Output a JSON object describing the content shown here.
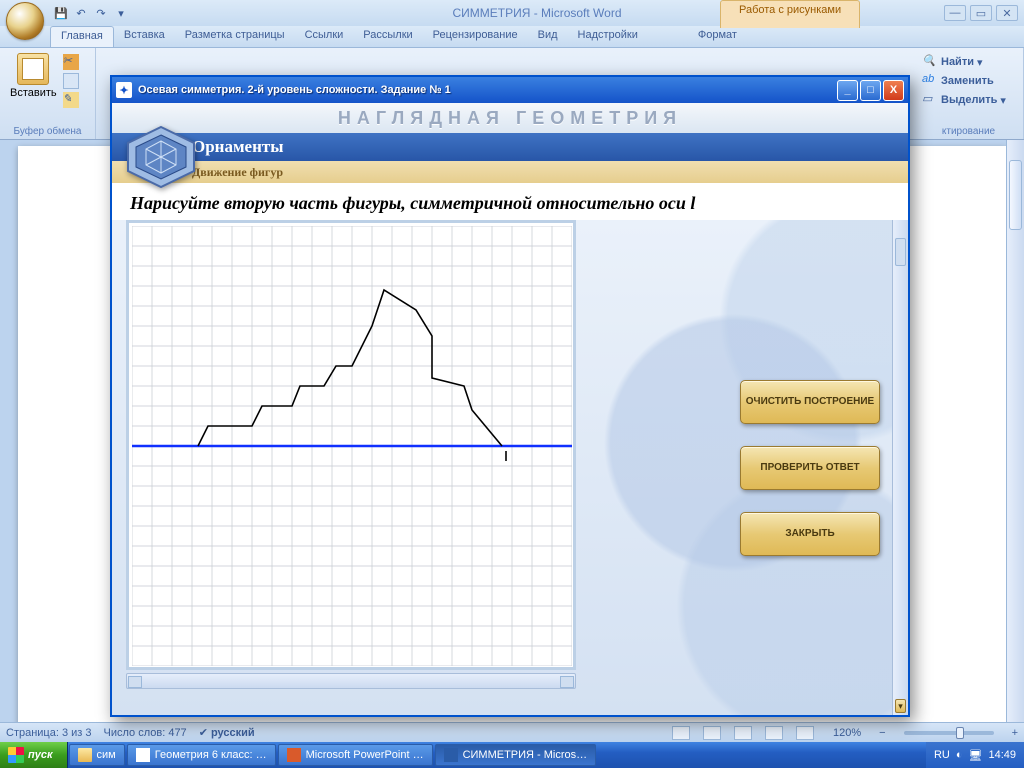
{
  "word": {
    "title": "СИММЕТРИЯ - Microsoft Word",
    "context_tab": "Работа с рисунками",
    "tabs": [
      "Главная",
      "Вставка",
      "Разметка страницы",
      "Ссылки",
      "Рассылки",
      "Рецензирование",
      "Вид",
      "Надстройки",
      "Формат"
    ],
    "active_tab_index": 0,
    "clipboard": {
      "paste": "Вставить",
      "group": "Буфер обмена"
    },
    "editing": {
      "find": "Найти",
      "replace": "Заменить",
      "select": "Выделить",
      "group": "ктирование"
    },
    "status": {
      "page": "Страница: 3 из 3",
      "words": "Число слов: 477",
      "lang": "русский",
      "zoom": "120%"
    }
  },
  "app": {
    "title": "Осевая симметрия. 2-й уровень сложности. Задание № 1",
    "brand": "НАГЛЯДНАЯ ГЕОМЕТРИЯ",
    "strip1": "Орнаменты",
    "strip2": "Движение фигур",
    "task": "Нарисуйте вторую часть фигуры, симметричной относительно оси l",
    "buttons": {
      "clear": "ОЧИСТИТЬ ПОСТРОЕНИЕ",
      "check": "ПРОВЕРИТЬ ОТВЕТ",
      "close": "ЗАКРЫТЬ"
    },
    "grid": {
      "cell": 20,
      "cols": 22,
      "rows": 22,
      "grid_color": "#c4c9d0",
      "axis_color": "#1030ff",
      "shape_color": "#000000",
      "axis_y_row": 11,
      "shape_points": [
        [
          3.3,
          11
        ],
        [
          3.8,
          10
        ],
        [
          6,
          10
        ],
        [
          6.5,
          9
        ],
        [
          8,
          9
        ],
        [
          8.4,
          8
        ],
        [
          9.6,
          8
        ],
        [
          10.2,
          7
        ],
        [
          11,
          7
        ],
        [
          12,
          5
        ],
        [
          12.6,
          3.2
        ],
        [
          14.2,
          4.2
        ],
        [
          15,
          5.5
        ],
        [
          15,
          7.6
        ],
        [
          16.6,
          8
        ],
        [
          17,
          9.2
        ],
        [
          18.5,
          11
        ]
      ],
      "tick_col": 18.7,
      "tick_row": 11.5
    }
  },
  "taskbar": {
    "start": "пуск",
    "items": [
      {
        "label": "сим",
        "icon": "folder"
      },
      {
        "label": "Геометрия 6 класс: …",
        "icon": "app"
      },
      {
        "label": "Microsoft PowerPoint …",
        "icon": "ppt"
      },
      {
        "label": "СИММЕТРИЯ - Micros…",
        "icon": "word",
        "active": true
      }
    ],
    "lang": "RU",
    "clock": "14:49"
  }
}
